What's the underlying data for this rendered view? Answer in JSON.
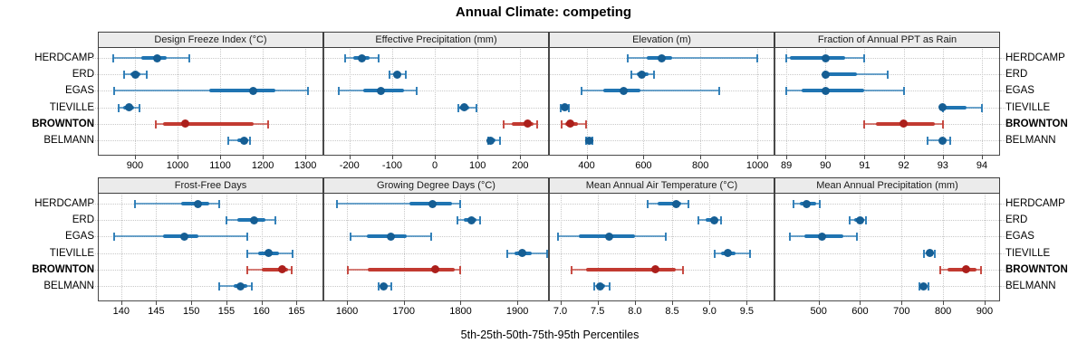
{
  "title": "Annual Climate: competing",
  "footer": "5th-25th-50th-75th-95th Percentiles",
  "colors": {
    "normal_line": "#1F74B2",
    "normal_dot": "#155E94",
    "highlight_line": "#C23A31",
    "highlight_dot": "#AC1F1B",
    "strip_bg": "#ebebeb",
    "grid": "#c9c9c9",
    "border": "#4a4a4a"
  },
  "sites": [
    {
      "name": "HERDCAMP",
      "highlight": false
    },
    {
      "name": "ERD",
      "highlight": false
    },
    {
      "name": "EGAS",
      "highlight": false
    },
    {
      "name": "TIEVILLE",
      "highlight": false
    },
    {
      "name": "BROWNTON",
      "highlight": true
    },
    {
      "name": "BELMANN",
      "highlight": false
    }
  ],
  "chart_data": {
    "type": "trellis-percentile-dotplot",
    "percentiles": [
      5,
      25,
      50,
      75,
      95
    ],
    "grid": "dotted",
    "note": "values per site are [p5,p25,p50,p75,p95]; site order matches sites[]",
    "panels": [
      {
        "title": "Design Freeze Index (°C)",
        "row": 0,
        "col": 0,
        "xlim": [
          815,
          1340
        ],
        "tick_values": [
          900,
          1000,
          1100,
          1200,
          1300
        ],
        "tick_labels": [
          "900",
          "1000",
          "1100",
          "1200",
          "1300"
        ],
        "values": [
          [
            850,
            915,
            952,
            975,
            1028
          ],
          [
            875,
            889,
            901,
            913,
            928
          ],
          [
            851,
            1075,
            1178,
            1230,
            1305
          ],
          [
            862,
            873,
            886,
            898,
            911
          ],
          [
            948,
            966,
            1018,
            1178,
            1212
          ],
          [
            1120,
            1140,
            1157,
            1166,
            1171
          ]
        ]
      },
      {
        "title": "Effective Precipitation (mm)",
        "row": 0,
        "col": 1,
        "xlim": [
          -259,
          265
        ],
        "tick_values": [
          -200,
          -100,
          0,
          100,
          200
        ],
        "tick_labels": [
          "-200",
          "-100",
          "0",
          "100",
          "200"
        ],
        "values": [
          [
            -210,
            -192,
            -170,
            -152,
            -132
          ],
          [
            -106,
            -97,
            -88,
            -78,
            -68
          ],
          [
            -226,
            -168,
            -126,
            -72,
            -42
          ],
          [
            54,
            58,
            68,
            80,
            97
          ],
          [
            162,
            180,
            218,
            232,
            240
          ],
          [
            124,
            127,
            131,
            142,
            152
          ]
        ]
      },
      {
        "title": "Elevation (m)",
        "row": 0,
        "col": 2,
        "xlim": [
          271,
          1057
        ],
        "tick_values": [
          400,
          600,
          800,
          1000
        ],
        "tick_labels": [
          "400",
          "600",
          "800",
          "1000"
        ],
        "values": [
          [
            545,
            610,
            663,
            700,
            1000
          ],
          [
            558,
            578,
            595,
            618,
            636
          ],
          [
            383,
            460,
            530,
            590,
            865
          ],
          [
            308,
            315,
            322,
            330,
            337
          ],
          [
            311,
            325,
            344,
            370,
            398
          ],
          [
            397,
            403,
            409,
            414,
            419
          ]
        ]
      },
      {
        "title": "Fraction of Annual PPT as Rain",
        "row": 0,
        "col": 3,
        "xlim": [
          88.72,
          94.44
        ],
        "tick_values": [
          89,
          90,
          91,
          92,
          93,
          94
        ],
        "tick_labels": [
          "89",
          "90",
          "91",
          "92",
          "93",
          "94"
        ],
        "values": [
          [
            89.0,
            89.1,
            90.0,
            90.5,
            91.0
          ],
          [
            90.0,
            90.0,
            90.0,
            90.8,
            91.6
          ],
          [
            89.0,
            89.4,
            90.0,
            91.0,
            92.0
          ],
          [
            93.0,
            93.0,
            93.0,
            93.6,
            94.0
          ],
          [
            91.0,
            91.3,
            92.0,
            92.8,
            93.0
          ],
          [
            92.6,
            92.9,
            93.0,
            93.1,
            93.2
          ]
        ]
      },
      {
        "title": "Frost-Free Days",
        "row": 1,
        "col": 0,
        "xlim": [
          136.8,
          168.7
        ],
        "tick_values": [
          140,
          145,
          150,
          155,
          160,
          165
        ],
        "tick_labels": [
          "140",
          "145",
          "150",
          "155",
          "160",
          "165"
        ],
        "values": [
          [
            142,
            148.5,
            151,
            152.5,
            154
          ],
          [
            155,
            156.5,
            159,
            160.5,
            162
          ],
          [
            139,
            146,
            149,
            151,
            158
          ],
          [
            158,
            159.5,
            161,
            162.5,
            164.5
          ],
          [
            158,
            160,
            163,
            163.8,
            164.3
          ],
          [
            154,
            156,
            157,
            158,
            158.6
          ]
        ]
      },
      {
        "title": "Growing Degree Days (°C)",
        "row": 1,
        "col": 1,
        "xlim": [
          1560,
          1954
        ],
        "tick_values": [
          1600,
          1700,
          1800,
          1900
        ],
        "tick_labels": [
          "1600",
          "1700",
          "1800",
          "1900"
        ],
        "values": [
          [
            1583,
            1710,
            1750,
            1785,
            1799
          ],
          [
            1795,
            1806,
            1820,
            1828,
            1834
          ],
          [
            1607,
            1635,
            1678,
            1705,
            1748
          ],
          [
            1882,
            1895,
            1908,
            1925,
            1952
          ],
          [
            1602,
            1636,
            1755,
            1790,
            1799
          ],
          [
            1655,
            1659,
            1664,
            1671,
            1678
          ]
        ]
      },
      {
        "title": "Mean Annual Air Temperature (°C)",
        "row": 1,
        "col": 2,
        "xlim": [
          6.86,
          9.86
        ],
        "tick_values": [
          7.0,
          7.5,
          8.0,
          8.5,
          9.0,
          9.5
        ],
        "tick_labels": [
          "7.0",
          "7.5",
          "8.0",
          "8.5",
          "9.0",
          "9.5"
        ],
        "values": [
          [
            8.17,
            8.3,
            8.55,
            8.62,
            8.72
          ],
          [
            8.85,
            8.95,
            9.07,
            9.12,
            9.16
          ],
          [
            6.97,
            7.25,
            7.65,
            8.0,
            8.42
          ],
          [
            9.07,
            9.15,
            9.25,
            9.35,
            9.55
          ],
          [
            7.15,
            7.35,
            8.28,
            8.55,
            8.64
          ],
          [
            7.45,
            7.49,
            7.54,
            7.6,
            7.66
          ]
        ]
      },
      {
        "title": "Mean Annual Precipitation (mm)",
        "row": 1,
        "col": 3,
        "xlim": [
          396,
          935
        ],
        "tick_values": [
          500,
          600,
          700,
          800,
          900
        ],
        "tick_labels": [
          "500",
          "600",
          "700",
          "800",
          "900"
        ],
        "values": [
          [
            440,
            455,
            472,
            495,
            503
          ],
          [
            575,
            586,
            600,
            610,
            615
          ],
          [
            432,
            465,
            508,
            560,
            592
          ],
          [
            754,
            762,
            768,
            775,
            781
          ],
          [
            793,
            810,
            855,
            880,
            891
          ],
          [
            744,
            748,
            753,
            760,
            765
          ]
        ]
      }
    ]
  }
}
